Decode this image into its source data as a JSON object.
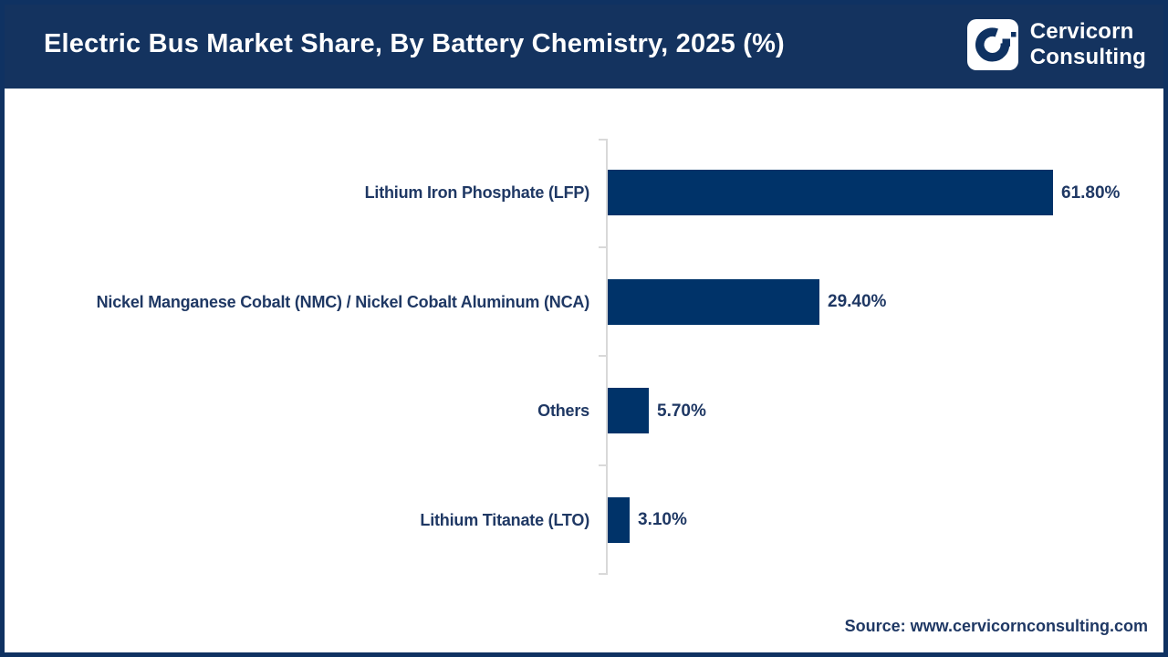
{
  "header": {
    "title": "Electric Bus Market Share, By Battery Chemistry, 2025 (%)",
    "logo": {
      "line1": "Cervicorn",
      "line2": "Consulting"
    }
  },
  "chart_data": {
    "type": "bar",
    "orientation": "horizontal",
    "title": "Electric Bus Market Share, By Battery Chemistry, 2025 (%)",
    "categories": [
      "Lithium Iron Phosphate (LFP)",
      "Nickel Manganese Cobalt (NMC) / Nickel Cobalt Aluminum (NCA)",
      "Others",
      "Lithium Titanate (LTO)"
    ],
    "values": [
      61.8,
      29.4,
      5.7,
      3.1
    ],
    "value_labels": [
      "61.80%",
      "29.40%",
      "5.70%",
      "3.10%"
    ],
    "xlabel": "",
    "ylabel": "",
    "xlim": [
      0,
      65
    ],
    "grid": false,
    "legend": "none",
    "bar_color": "#003369"
  },
  "footer": {
    "source": "Source: www.cervicornconsulting.com"
  },
  "colors": {
    "header_bg": "#14335F",
    "frame": "#0F3262",
    "bar": "#003369",
    "label_text": "#1F3864",
    "axis_line": "#D9D9D9"
  }
}
